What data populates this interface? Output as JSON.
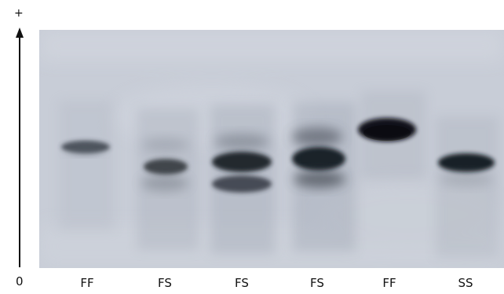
{
  "axis": {
    "top_label": "+",
    "bottom_label": "0"
  },
  "lanes": [
    {
      "label": "FF"
    },
    {
      "label": "FS"
    },
    {
      "label": "FS"
    },
    {
      "label": "FS"
    },
    {
      "label": "FF"
    },
    {
      "label": "SS"
    }
  ],
  "colors": {
    "gel_background": "#c8cdd7",
    "band_dark": "#121518",
    "band_mid": "#2d333b"
  }
}
